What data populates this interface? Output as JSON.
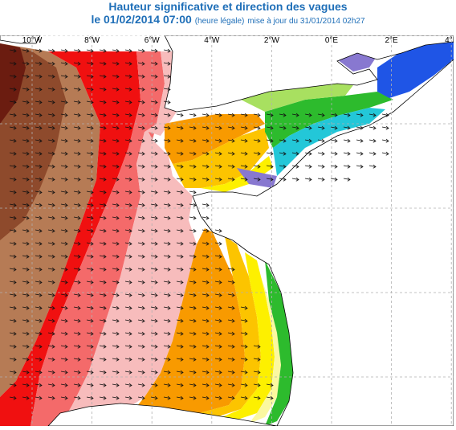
{
  "header": {
    "title": "Hauteur significative et direction des vagues",
    "date_line": "le 01/02/2014 07:00",
    "legal_note": "(heure légale)",
    "update_note": "mise à jour du 31/01/2014 02h27"
  },
  "map": {
    "longitude_labels": [
      "10°W",
      "8°W",
      "6°W",
      "4°W",
      "2°W",
      "0°E",
      "2°E",
      "4°E"
    ],
    "longitude_values": [
      -10,
      -8,
      -6,
      -4,
      -2,
      0,
      2,
      4
    ],
    "wave_direction": "east-southeast",
    "colors": {
      "land": "#ffffff",
      "darkbrown": "#6b1c10",
      "brown2": "#8e4a2c",
      "tan": "#b67b55",
      "red": "#f01010",
      "salmon": "#f46a6a",
      "pink": "#f7bcbc",
      "orange": "#f89a00",
      "yelloworange": "#fcc400",
      "yellow": "#fdf000",
      "paleyellow": "#fbf8a0",
      "green": "#2dbb2d",
      "lightgreen": "#a8e060",
      "cyan": "#23c7d8",
      "blue": "#1f55e6",
      "purple": "#8878d0",
      "grid": "#b0b0b0"
    }
  }
}
